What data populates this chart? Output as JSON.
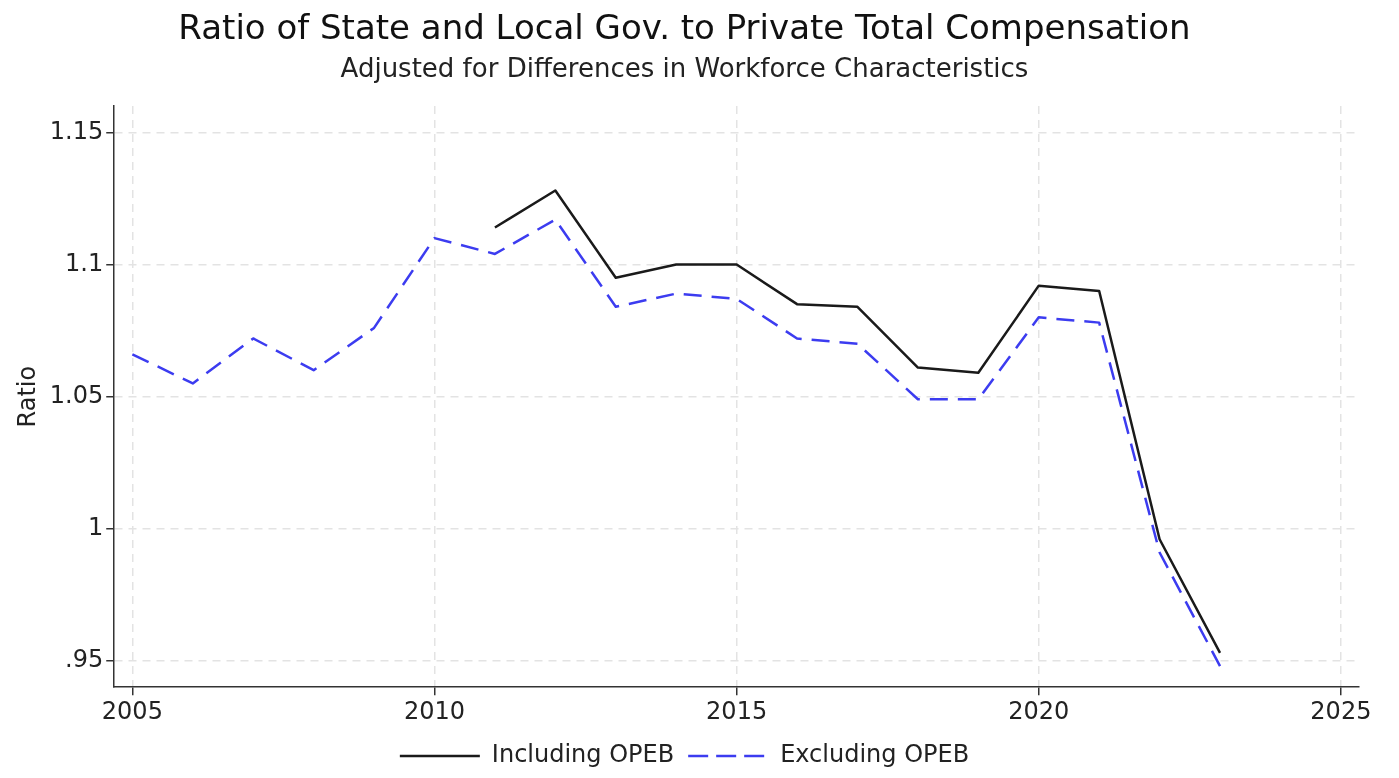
{
  "chart_data": {
    "type": "line",
    "title": "Ratio of State and Local Gov. to Private Total Compensation",
    "subtitle": "Adjusted for Differences in Workforce Characteristics",
    "ylabel": "Ratio",
    "x": [
      2005,
      2006,
      2007,
      2008,
      2009,
      2010,
      2011,
      2012,
      2013,
      2014,
      2015,
      2016,
      2017,
      2018,
      2019,
      2020,
      2021,
      2022,
      2023
    ],
    "series": [
      {
        "name": "Including OPEB",
        "color": "#1a1a1a",
        "line_style": "solid",
        "values": [
          null,
          null,
          null,
          null,
          null,
          null,
          1.114,
          1.128,
          1.095,
          1.1,
          1.1,
          1.085,
          1.084,
          1.061,
          1.059,
          1.092,
          1.09,
          0.996,
          0.953
        ]
      },
      {
        "name": "Excluding OPEB",
        "color": "#3c3cf0",
        "line_style": "dashed",
        "values": [
          1.066,
          1.055,
          1.072,
          1.06,
          1.076,
          1.11,
          1.104,
          1.117,
          1.084,
          1.089,
          1.087,
          1.072,
          1.07,
          1.049,
          1.049,
          1.08,
          1.078,
          0.991,
          0.948
        ]
      }
    ],
    "xlim": [
      2004.7,
      2025.3
    ],
    "xticks": [
      2005,
      2010,
      2015,
      2020,
      2025
    ],
    "ylim": [
      0.94,
      1.16
    ],
    "yticks": [
      {
        "value": 0.95,
        "label": ".95"
      },
      1,
      1.05,
      1.1,
      1.15
    ],
    "grid": true,
    "legend": "bottom",
    "marker": "none"
  }
}
